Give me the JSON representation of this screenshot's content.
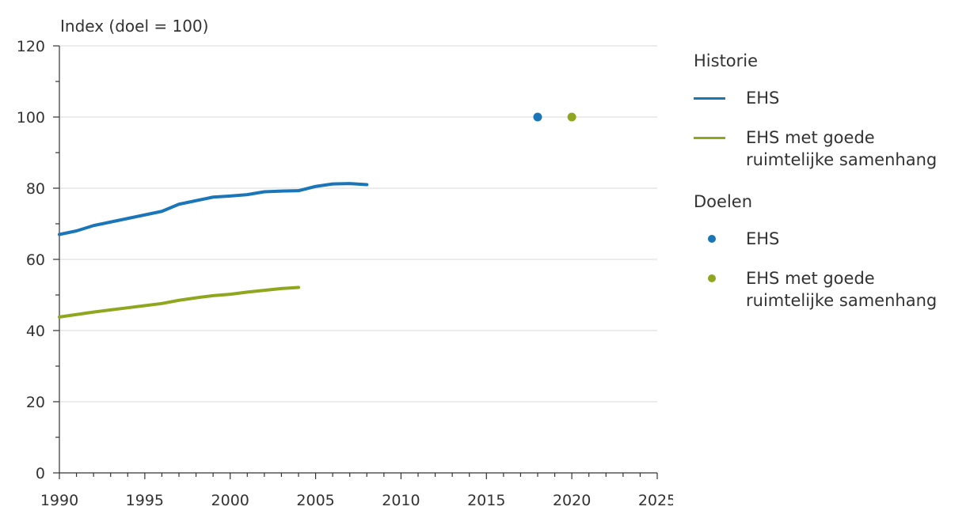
{
  "chart_data": {
    "type": "line",
    "ylabel": "Index (doel = 100)",
    "xlim": [
      1990,
      2025
    ],
    "ylim": [
      0,
      120
    ],
    "xticks": [
      1990,
      1995,
      2000,
      2005,
      2010,
      2015,
      2020,
      2025
    ],
    "yticks": [
      0,
      20,
      40,
      60,
      80,
      100,
      120
    ],
    "grid": true,
    "legend_position": "right",
    "groups": [
      {
        "title": "Historie",
        "series": [
          {
            "name": "EHS",
            "color": "#1a76b8",
            "marker": "line",
            "x": [
              1990,
              1991,
              1992,
              1993,
              1994,
              1995,
              1996,
              1997,
              1998,
              1999,
              2000,
              2001,
              2002,
              2003,
              2004,
              2005,
              2006,
              2007,
              2008
            ],
            "y": [
              67,
              68,
              69.5,
              70.5,
              71.5,
              72.5,
              73.5,
              75.5,
              76.5,
              77.5,
              77.8,
              78.2,
              79,
              79.2,
              79.3,
              80.5,
              81.2,
              81.3,
              81
            ]
          },
          {
            "name": "EHS met goede ruimtelijke samenhang",
            "color": "#8fa61f",
            "marker": "line",
            "x": [
              1990,
              1991,
              1992,
              1993,
              1994,
              1995,
              1996,
              1997,
              1998,
              1999,
              2000,
              2001,
              2002,
              2003,
              2004
            ],
            "y": [
              43.8,
              44.5,
              45.2,
              45.8,
              46.4,
              47,
              47.6,
              48.5,
              49.2,
              49.8,
              50.2,
              50.8,
              51.3,
              51.8,
              52.1
            ]
          }
        ]
      },
      {
        "title": "Doelen",
        "series": [
          {
            "name": "EHS",
            "color": "#1a76b8",
            "marker": "dot",
            "x": [
              2018
            ],
            "y": [
              100
            ]
          },
          {
            "name": "EHS met goede ruimtelijke samenhang",
            "color": "#8fa61f",
            "marker": "dot",
            "x": [
              2020
            ],
            "y": [
              100
            ]
          }
        ]
      }
    ]
  }
}
